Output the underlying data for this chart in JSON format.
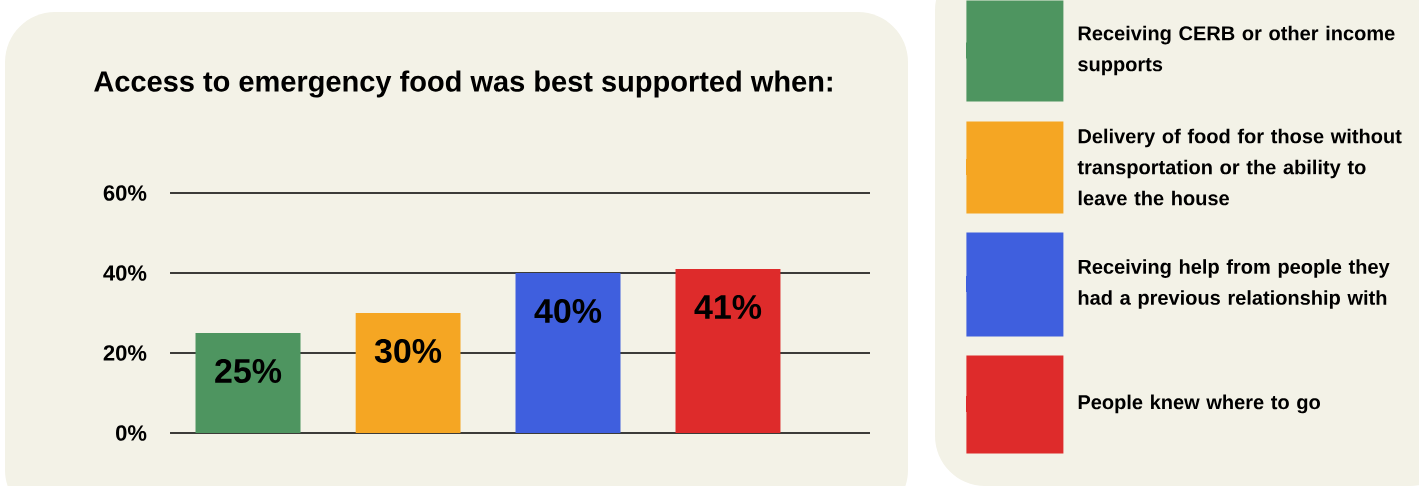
{
  "chart_data": {
    "type": "bar",
    "title": "Access to emergency food was best supported when:",
    "categories": [
      null,
      null,
      null,
      null
    ],
    "series": [
      {
        "name": "Receiving CERB or other income supports",
        "color": "#4e9560",
        "values": [
          25,
          null,
          null,
          null
        ],
        "value_labels": [
          "25%",
          null,
          null,
          null
        ]
      },
      {
        "name": "Delivery of food for those without transportation or the ability to leave the house",
        "color": "#f5a623",
        "values": [
          null,
          30,
          null,
          null
        ],
        "value_labels": [
          null,
          "30%",
          null,
          null
        ]
      },
      {
        "name": "Receiving help from people they had a previous relationship with",
        "color": "#3f5fde",
        "values": [
          null,
          null,
          40,
          null
        ],
        "value_labels": [
          null,
          null,
          "40%",
          null
        ]
      },
      {
        "name": "People knew where to go",
        "color": "#de2b2b",
        "values": [
          null,
          null,
          null,
          41
        ],
        "value_labels": [
          null,
          null,
          null,
          "41%"
        ]
      }
    ],
    "ylim": [
      0,
      60
    ],
    "yticks": [
      {
        "value": 0,
        "label": "0%"
      },
      {
        "value": 20,
        "label": "20%"
      },
      {
        "value": 40,
        "label": "40%"
      },
      {
        "value": 60,
        "label": "60%"
      }
    ],
    "grid": "y",
    "legend": "right",
    "tick_labels": "y"
  }
}
